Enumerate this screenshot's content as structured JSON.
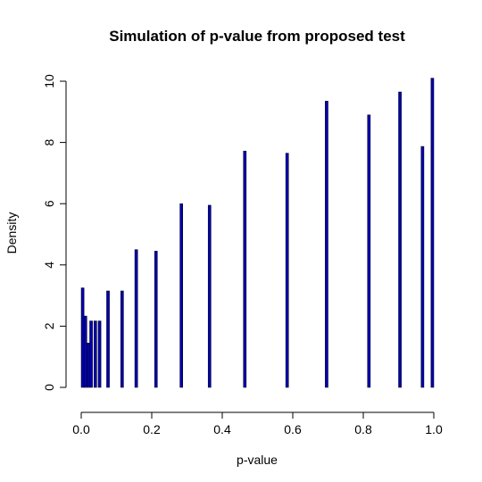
{
  "chart_data": {
    "type": "bar",
    "title": "Simulation of p-value from proposed test",
    "xlabel": "p-value",
    "ylabel": "Density",
    "xlim": [
      0,
      1
    ],
    "ylim": [
      0,
      10.2
    ],
    "x_ticks": [
      0.0,
      0.2,
      0.4,
      0.6,
      0.8,
      1.0
    ],
    "x_tick_labels": [
      "0.0",
      "0.2",
      "0.4",
      "0.6",
      "0.8",
      "1.0"
    ],
    "y_ticks": [
      0,
      2,
      4,
      6,
      8,
      10
    ],
    "y_tick_labels": [
      "0",
      "2",
      "4",
      "6",
      "8",
      "10"
    ],
    "bar_color": "#0000b0",
    "bar_edge_color": "#000000",
    "bins": [
      {
        "x0": 0.0,
        "x1": 0.008,
        "density": 3.25
      },
      {
        "x0": 0.008,
        "x1": 0.016,
        "density": 2.33
      },
      {
        "x0": 0.016,
        "x1": 0.024,
        "density": 1.45
      },
      {
        "x0": 0.024,
        "x1": 0.032,
        "density": 2.17
      },
      {
        "x0": 0.036,
        "x1": 0.044,
        "density": 2.17
      },
      {
        "x0": 0.048,
        "x1": 0.056,
        "density": 2.17
      },
      {
        "x0": 0.072,
        "x1": 0.08,
        "density": 3.15
      },
      {
        "x0": 0.112,
        "x1": 0.12,
        "density": 3.15
      },
      {
        "x0": 0.152,
        "x1": 0.16,
        "density": 4.5
      },
      {
        "x0": 0.208,
        "x1": 0.216,
        "density": 4.45
      },
      {
        "x0": 0.28,
        "x1": 0.288,
        "density": 6.0
      },
      {
        "x0": 0.36,
        "x1": 0.368,
        "density": 5.95
      },
      {
        "x0": 0.46,
        "x1": 0.468,
        "density": 7.72
      },
      {
        "x0": 0.58,
        "x1": 0.588,
        "density": 7.65
      },
      {
        "x0": 0.692,
        "x1": 0.7,
        "density": 9.35
      },
      {
        "x0": 0.812,
        "x1": 0.82,
        "density": 8.9
      },
      {
        "x0": 0.9,
        "x1": 0.908,
        "density": 9.65
      },
      {
        "x0": 0.964,
        "x1": 0.972,
        "density": 7.87
      },
      {
        "x0": 0.992,
        "x1": 1.0,
        "density": 10.1
      }
    ]
  }
}
